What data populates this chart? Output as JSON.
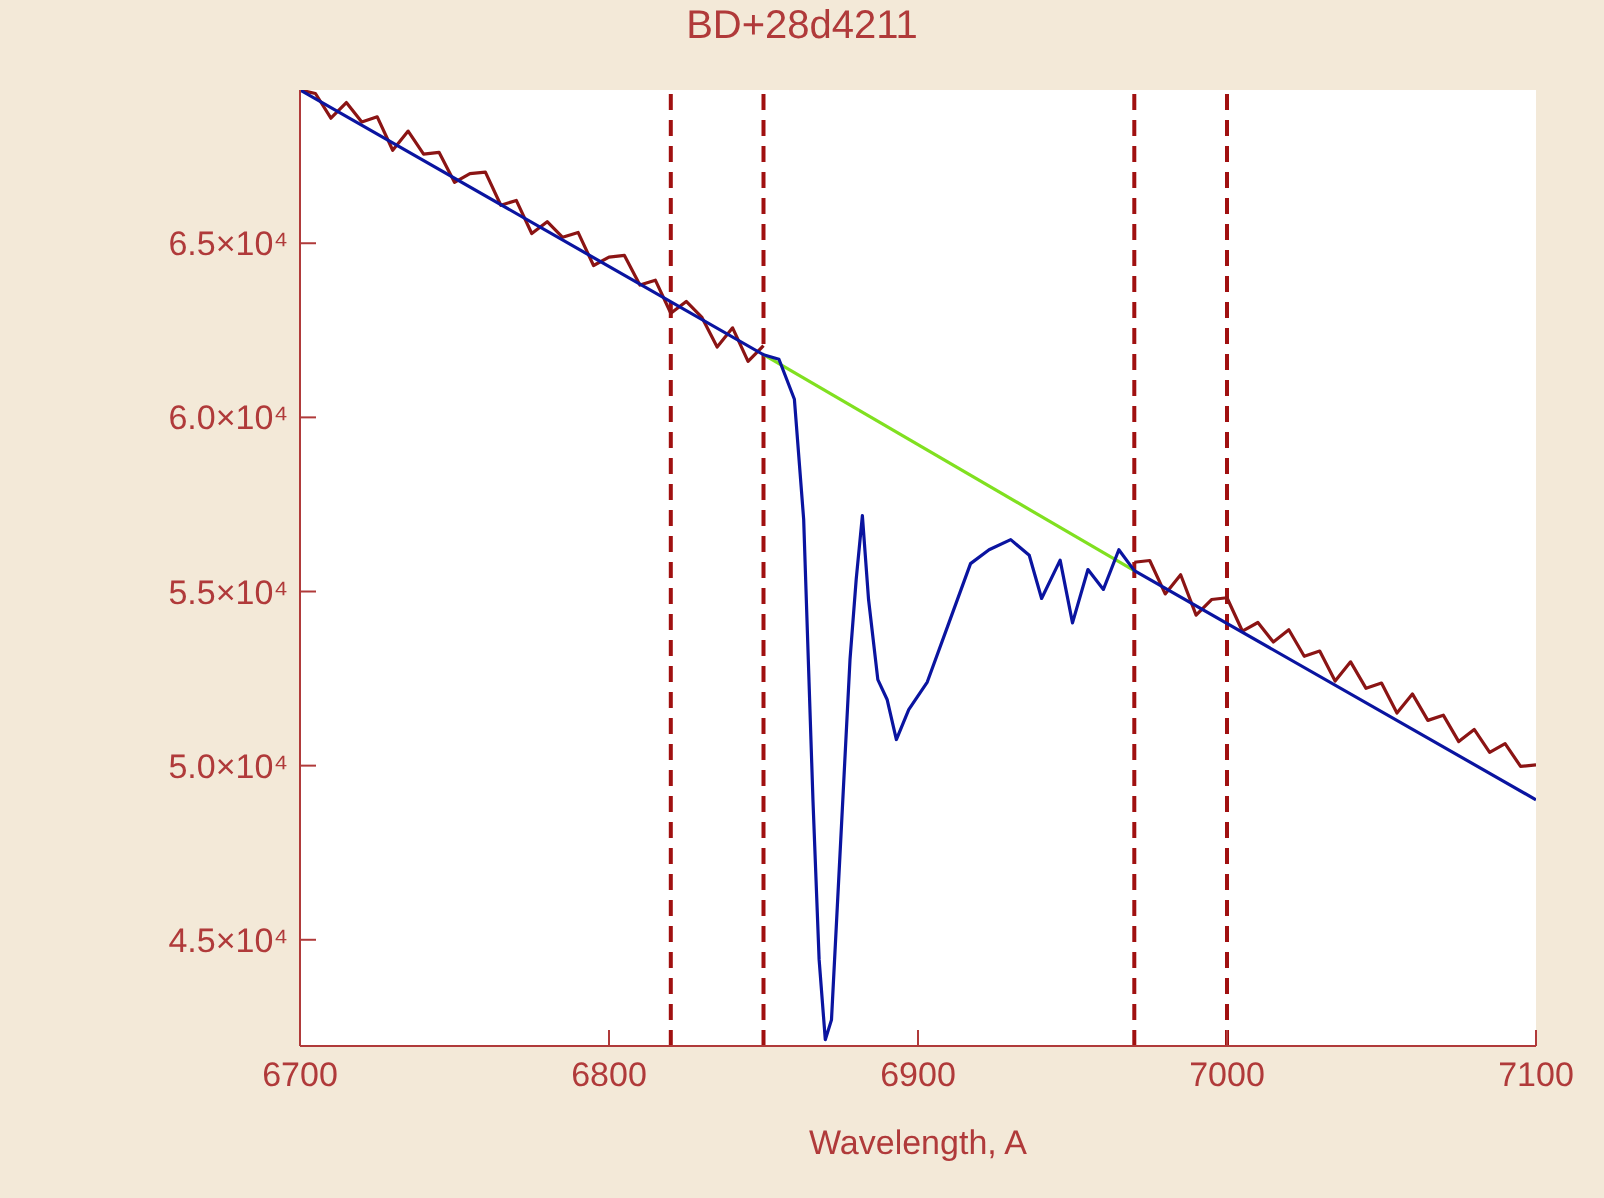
{
  "chart_data": {
    "type": "line",
    "title": "BD+28d4211",
    "xlabel": "Wavelength, A",
    "xlim": [
      6700,
      7100
    ],
    "xticks": [
      6700,
      6800,
      6900,
      7000,
      7100
    ],
    "ylim": [
      41950,
      69400
    ],
    "yticks": [
      {
        "value": 45000,
        "label": "4.5×10⁴"
      },
      {
        "value": 50000,
        "label": "5.0×10⁴"
      },
      {
        "value": 55000,
        "label": "5.5×10⁴"
      },
      {
        "value": 60000,
        "label": "6.0×10⁴"
      },
      {
        "value": 65000,
        "label": "6.5×10⁴"
      }
    ],
    "line_style": "solid",
    "series": [
      {
        "color": "#8b1414",
        "x": [
          6700,
          6705,
          6710,
          6715,
          6720,
          6725,
          6730,
          6735,
          6740,
          6745,
          6750,
          6755,
          6760,
          6765,
          6770,
          6775,
          6780,
          6785,
          6790,
          6795,
          6800,
          6805,
          6810,
          6815,
          6820,
          6825,
          6830,
          6835,
          6840,
          6845,
          6850
        ],
        "values": [
          69400,
          69300,
          68590,
          69040,
          68480,
          68630,
          67670,
          68220,
          67560,
          67610,
          66750,
          67000,
          67040,
          66090,
          66230,
          65280,
          65620,
          65170,
          65310,
          64360,
          64600,
          64650,
          63800,
          63940,
          62990,
          63330,
          62880,
          62020,
          62570,
          61610,
          62060
        ]
      },
      {
        "color": "#8b1414",
        "x": [
          6970,
          6975,
          6980,
          6985,
          6990,
          6995,
          7000,
          7005,
          7010,
          7015,
          7020,
          7025,
          7030,
          7035,
          7040,
          7045,
          7050,
          7055,
          7060,
          7065,
          7070,
          7075,
          7080,
          7085,
          7090,
          7095,
          7100
        ],
        "values": [
          55840,
          55890,
          54930,
          55480,
          54320,
          54770,
          54820,
          53860,
          54110,
          53550,
          53900,
          53140,
          53290,
          52430,
          52980,
          52220,
          52370,
          51510,
          52060,
          51300,
          51450,
          50690,
          51040,
          50380,
          50630,
          49980,
          50020
        ]
      },
      {
        "color": "#80e020",
        "x": [
          6850,
          6970
        ],
        "values": [
          61800,
          55600
        ]
      },
      {
        "color": "#0a14a0",
        "x": [
          6700,
          6850,
          6855,
          6860,
          6863,
          6866,
          6868,
          6870,
          6872,
          6875,
          6878,
          6880,
          6882,
          6884,
          6887,
          6890,
          6893,
          6897,
          6903,
          6910,
          6917,
          6923,
          6930,
          6936,
          6940,
          6946,
          6950,
          6955,
          6960,
          6965,
          6970,
          7100
        ],
        "values": [
          69400,
          61800,
          61670,
          60520,
          57070,
          49020,
          44430,
          42130,
          42700,
          47870,
          53050,
          55350,
          57180,
          54770,
          52470,
          51900,
          50750,
          51610,
          52400,
          54100,
          55800,
          56200,
          56490,
          56040,
          54800,
          55900,
          54100,
          55630,
          55060,
          56200,
          55600,
          49020
        ]
      }
    ],
    "ref_lines": [
      {
        "axis": "x",
        "value": 6820,
        "color": "#a01010",
        "line_style": "dashed"
      },
      {
        "axis": "x",
        "value": 6850,
        "color": "#a01010",
        "line_style": "dashed"
      },
      {
        "axis": "x",
        "value": 6970,
        "color": "#a01010",
        "line_style": "dashed"
      },
      {
        "axis": "x",
        "value": 7000,
        "color": "#a01010",
        "line_style": "dashed"
      }
    ]
  }
}
